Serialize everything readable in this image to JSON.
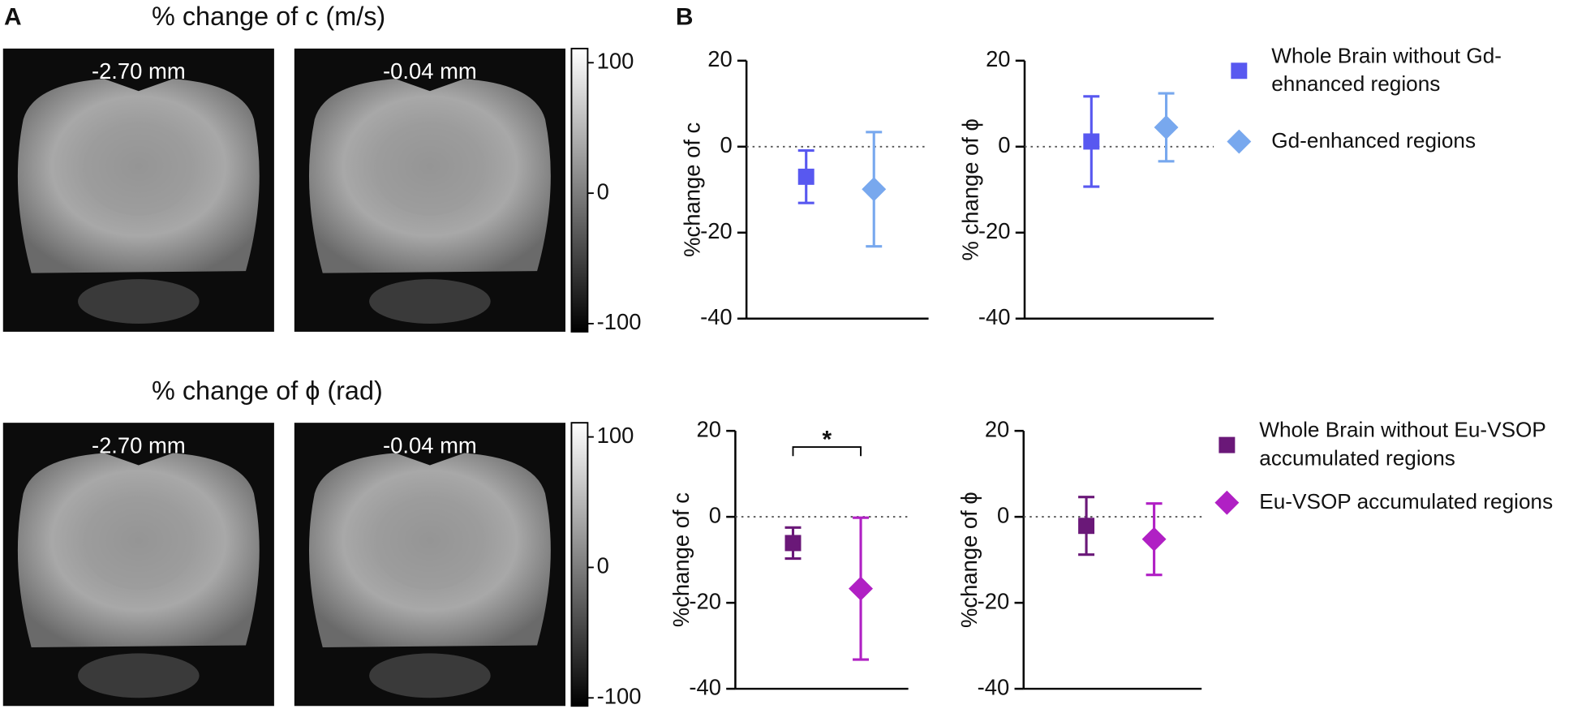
{
  "panel_a": {
    "label": "A",
    "rows": [
      {
        "title": "% change of c (m/s)",
        "slices": [
          "-2.70 mm",
          "-0.04 mm"
        ],
        "colorbar": {
          "clim": [
            -100,
            100
          ],
          "ticks": [
            100,
            0,
            -100
          ]
        }
      },
      {
        "title": "% change of ϕ (rad)",
        "slices": [
          "-2.70 mm",
          "-0.04 mm"
        ],
        "colorbar": {
          "clim": [
            -100,
            100
          ],
          "ticks": [
            100,
            0,
            -100
          ]
        }
      }
    ]
  },
  "panel_b_label": "B",
  "chart_data": [
    {
      "type": "errorbar",
      "y_label": "%change of c",
      "categories": [
        null,
        null
      ],
      "ylim": [
        -40,
        20
      ],
      "yticks": [
        -40,
        -20,
        0,
        20
      ],
      "zero_line": true,
      "series": [
        {
          "color": "#5858f0",
          "marker": "square",
          "values": [
            -7,
            null
          ],
          "errors": [
            6.1,
            null
          ]
        },
        {
          "color": "#78a8ee",
          "marker": "diamond",
          "values": [
            null,
            -9.9
          ],
          "errors": [
            null,
            13.3
          ]
        }
      ]
    },
    {
      "type": "errorbar",
      "y_label": "% change of ϕ",
      "categories": [
        null,
        null
      ],
      "ylim": [
        -40,
        20
      ],
      "yticks": [
        -40,
        -20,
        0,
        20
      ],
      "zero_line": true,
      "series": [
        {
          "name": "Whole Brain without Gd-ehnanced regions",
          "color": "#5858f0",
          "marker": "square",
          "values": [
            1.2,
            null
          ],
          "errors": [
            10.5,
            null
          ]
        },
        {
          "name": "Gd-enhanced regions",
          "color": "#78a8ee",
          "marker": "diamond",
          "values": [
            null,
            4.5
          ],
          "errors": [
            null,
            7.9
          ]
        }
      ]
    },
    {
      "type": "errorbar",
      "y_label": "%change of c",
      "categories": [
        null,
        null
      ],
      "ylim": [
        -40,
        20
      ],
      "yticks": [
        -40,
        -20,
        0,
        20
      ],
      "zero_line": true,
      "annotation": "*",
      "series": [
        {
          "color": "#6a1878",
          "marker": "square",
          "values": [
            -6.1,
            null
          ],
          "errors": [
            3.6,
            null
          ]
        },
        {
          "color": "#b020c4",
          "marker": "diamond",
          "values": [
            null,
            -16.7
          ],
          "errors": [
            null,
            16.5
          ]
        }
      ]
    },
    {
      "type": "errorbar",
      "y_label": "%change of ϕ",
      "categories": [
        null,
        null
      ],
      "ylim": [
        -40,
        20
      ],
      "yticks": [
        -40,
        -20,
        0,
        20
      ],
      "zero_line": true,
      "series": [
        {
          "name": "Whole Brain without Eu-VSOP accumulated regions",
          "color": "#6a1878",
          "marker": "square",
          "values": [
            -2.1,
            null
          ],
          "errors": [
            6.7,
            null
          ]
        },
        {
          "name": "Eu-VSOP accumulated regions",
          "color": "#b020c4",
          "marker": "diamond",
          "values": [
            null,
            -5.2
          ],
          "errors": [
            null,
            8.3
          ]
        }
      ]
    }
  ]
}
